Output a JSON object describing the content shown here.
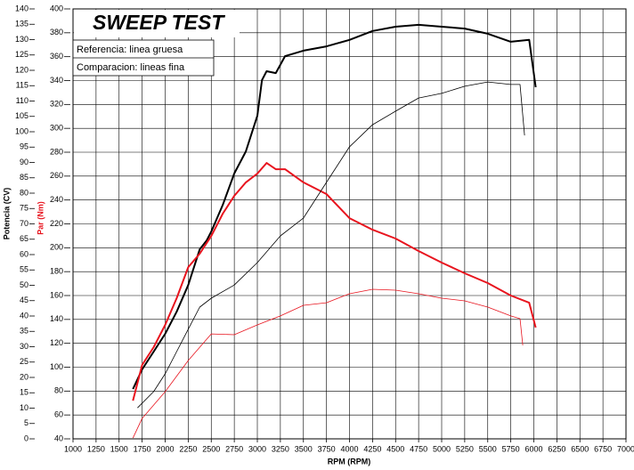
{
  "chart_data": {
    "type": "line",
    "title": "SWEEP TEST",
    "annotations": [
      "Referencia: linea gruesa",
      "Comparacion: lineas fina"
    ],
    "ylabel": "Potencia (CV)",
    "y2label": "Par (Nm)",
    "xlabel": "RPM (RPM)",
    "xlim": [
      1000,
      7000
    ],
    "xticks": [
      1000,
      1250,
      1500,
      1750,
      2000,
      2250,
      2500,
      2750,
      3000,
      3250,
      3500,
      3750,
      4000,
      4250,
      4500,
      4750,
      5000,
      5250,
      5500,
      5750,
      6000,
      6250,
      6500,
      6750,
      7000
    ],
    "ylim": [
      0,
      140
    ],
    "yticks": [
      0,
      5,
      10,
      15,
      20,
      25,
      30,
      35,
      40,
      45,
      50,
      55,
      60,
      65,
      70,
      75,
      80,
      85,
      90,
      95,
      100,
      105,
      110,
      115,
      120,
      125,
      130,
      135,
      140
    ],
    "y2lim": [
      40,
      400
    ],
    "y2ticks": [
      40,
      60,
      80,
      100,
      120,
      140,
      160,
      180,
      200,
      220,
      240,
      260,
      280,
      300,
      320,
      340,
      360,
      380,
      400
    ],
    "grid": true,
    "series": [
      {
        "color": "#000000",
        "width": 2,
        "x": [
          1650,
          1750,
          1875,
          2000,
          2125,
          2250,
          2375,
          2450,
          2500,
          2625,
          2750,
          2875,
          3000,
          3050,
          3100,
          3200,
          3300,
          3500,
          3750,
          4000,
          4250,
          4500,
          4750,
          5000,
          5250,
          5500,
          5750,
          5950,
          6020
        ],
        "values": [
          16.2,
          22.6,
          28.4,
          34.2,
          41.4,
          50.1,
          61.7,
          64.6,
          67.5,
          76.2,
          86.4,
          93.6,
          105.2,
          116.8,
          119.7,
          119.1,
          124.6,
          126.4,
          127.8,
          129.9,
          132.8,
          134.2,
          134.8,
          134.2,
          133.6,
          131.9,
          129.3,
          129.9,
          114.5
        ]
      },
      {
        "color": "#e8141e",
        "width": 2,
        "axis": "y2",
        "x": [
          1650,
          1750,
          1875,
          2000,
          2125,
          2250,
          2375,
          2500,
          2625,
          2750,
          2875,
          3000,
          3100,
          3200,
          3300,
          3500,
          3750,
          4000,
          4250,
          4500,
          4750,
          5000,
          5250,
          5500,
          5750,
          5950,
          6020
        ],
        "values": [
          72,
          101.9,
          116.8,
          135.4,
          157.8,
          183.8,
          195,
          209.9,
          228.6,
          243.5,
          254.7,
          262.1,
          271,
          265.8,
          265.8,
          254.7,
          245,
          224.8,
          215.1,
          207.7,
          197.3,
          187.6,
          178.6,
          170.4,
          160,
          154,
          133.2
        ]
      },
      {
        "color": "#000000",
        "width": 0.8,
        "x": [
          1700,
          1875,
          2000,
          2125,
          2250,
          2375,
          2500,
          2750,
          3000,
          3250,
          3500,
          3750,
          4000,
          4250,
          4500,
          4750,
          5000,
          5250,
          5500,
          5750,
          5850,
          5900
        ],
        "values": [
          10.1,
          15.4,
          21.2,
          28.4,
          35.7,
          42.9,
          45.8,
          50.1,
          57.4,
          66.1,
          71.9,
          83.5,
          95.1,
          102.3,
          106.7,
          111,
          112.5,
          114.8,
          116.2,
          115.4,
          115.4,
          98.8
        ]
      },
      {
        "color": "#e8141e",
        "width": 0.8,
        "axis": "y2",
        "x": [
          1650,
          1750,
          2000,
          2250,
          2500,
          2750,
          3000,
          3250,
          3500,
          3750,
          4000,
          4250,
          4500,
          4750,
          5000,
          5250,
          5500,
          5750,
          5850,
          5880
        ],
        "values": [
          40.7,
          57.1,
          79.5,
          105.6,
          127.9,
          127.2,
          135.4,
          142.9,
          151.8,
          154,
          161.5,
          165.2,
          164.5,
          161.5,
          157.8,
          155.5,
          150.3,
          142.9,
          140.6,
          118.3
        ]
      }
    ]
  }
}
